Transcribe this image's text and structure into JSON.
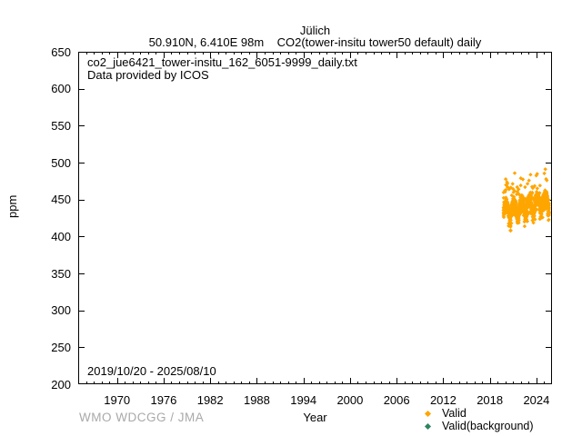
{
  "header": {
    "title": "Jülich",
    "subtitle": "50.910N, 6.410E 98m    CO2(tower-insitu tower50 default) daily"
  },
  "plot_annotations": {
    "filename": "co2_jue6421_tower-insitu_162_6051-9999_daily.txt",
    "provider": "Data provided by ICOS",
    "date_range": "2019/10/20 - 2025/08/10"
  },
  "footer": {
    "attribution": "WMO WDCGG / JMA"
  },
  "legend": {
    "items": [
      {
        "label": "Valid",
        "color": "#FFA500",
        "marker": "diamond"
      },
      {
        "label": "Valid(background)",
        "color": "#2E8560",
        "marker": "diamond"
      }
    ]
  },
  "chart_data": {
    "type": "scatter",
    "title": "Jülich",
    "subtitle": "50.910N, 6.410E 98m    CO2(tower-insitu tower50 default) daily",
    "xlabel": "Year",
    "ylabel": "ppm",
    "xlim": [
      1965,
      2026
    ],
    "ylim": [
      200,
      650
    ],
    "x_major_ticks": [
      1970,
      1976,
      1982,
      1988,
      1994,
      2000,
      2006,
      2012,
      2018,
      2024
    ],
    "x_minor_step": 1,
    "y_ticks": [
      200,
      250,
      300,
      350,
      400,
      450,
      500,
      550,
      600,
      650
    ],
    "grid": false,
    "legend_position": "bottom-right",
    "series": [
      {
        "name": "Valid",
        "color": "#FFA500",
        "marker": "diamond",
        "coverage": "daily values 2019/10/20 - 2025/08/10, approx 408-491 ppm",
        "points_per_month": 14,
        "noise_ppm": 10,
        "spike_prob": 0.07,
        "spike_min": 12,
        "spike_max": 38,
        "dip_prob": 0.06,
        "dip_min": 7,
        "dip_max": 16,
        "clamp": [
          408,
          491
        ],
        "monthly_means": [
          [
            2019.79,
            432.5
          ],
          [
            2019.87,
            437.7
          ],
          [
            2019.96,
            440.9
          ],
          [
            2020.04,
            442.1
          ],
          [
            2020.12,
            443.3
          ],
          [
            2020.21,
            442.5
          ],
          [
            2020.29,
            439.7
          ],
          [
            2020.37,
            435.9
          ],
          [
            2020.46,
            430.1
          ],
          [
            2020.54,
            425.3
          ],
          [
            2020.62,
            424.5
          ],
          [
            2020.71,
            428.7
          ],
          [
            2020.79,
            434.9
          ],
          [
            2020.87,
            440.1
          ],
          [
            2020.96,
            443.3
          ],
          [
            2021.04,
            444.5
          ],
          [
            2021.12,
            445.7
          ],
          [
            2021.21,
            444.9
          ],
          [
            2021.29,
            442.1
          ],
          [
            2021.37,
            438.3
          ],
          [
            2021.46,
            432.5
          ],
          [
            2021.54,
            427.7
          ],
          [
            2021.62,
            426.9
          ],
          [
            2021.71,
            431.1
          ],
          [
            2021.79,
            437.3
          ],
          [
            2021.87,
            442.5
          ],
          [
            2021.96,
            445.7
          ],
          [
            2022.04,
            446.9
          ],
          [
            2022.12,
            448.1
          ],
          [
            2022.21,
            447.3
          ],
          [
            2022.29,
            444.5
          ],
          [
            2022.37,
            440.7
          ],
          [
            2022.46,
            434.9
          ],
          [
            2022.54,
            430.1
          ],
          [
            2022.62,
            429.3
          ],
          [
            2022.71,
            433.5
          ],
          [
            2022.79,
            439.7
          ],
          [
            2022.87,
            444.9
          ],
          [
            2022.96,
            448.1
          ],
          [
            2023.04,
            449.3
          ],
          [
            2023.12,
            450.5
          ],
          [
            2023.21,
            449.7
          ],
          [
            2023.29,
            446.9
          ],
          [
            2023.37,
            443.1
          ],
          [
            2023.46,
            437.3
          ],
          [
            2023.54,
            432.5
          ],
          [
            2023.62,
            431.7
          ],
          [
            2023.71,
            435.9
          ],
          [
            2023.79,
            442.1
          ],
          [
            2023.87,
            447.3
          ],
          [
            2023.96,
            450.5
          ],
          [
            2024.04,
            451.7
          ],
          [
            2024.12,
            452.9
          ],
          [
            2024.21,
            452.1
          ],
          [
            2024.29,
            449.3
          ],
          [
            2024.37,
            445.5
          ],
          [
            2024.46,
            439.7
          ],
          [
            2024.54,
            434.9
          ],
          [
            2024.62,
            434.1
          ],
          [
            2024.71,
            438.3
          ],
          [
            2024.79,
            444.5
          ],
          [
            2024.87,
            449.7
          ],
          [
            2024.96,
            452.9
          ],
          [
            2025.04,
            454.1
          ],
          [
            2025.12,
            455.3
          ],
          [
            2025.21,
            454.5
          ],
          [
            2025.29,
            451.7
          ],
          [
            2025.37,
            447.9
          ],
          [
            2025.46,
            442.1
          ],
          [
            2025.54,
            437.3
          ],
          [
            2025.6,
            436.5
          ]
        ]
      },
      {
        "name": "Valid(background)",
        "color": "#2E8560",
        "marker": "diamond",
        "monthly_means": []
      }
    ]
  }
}
